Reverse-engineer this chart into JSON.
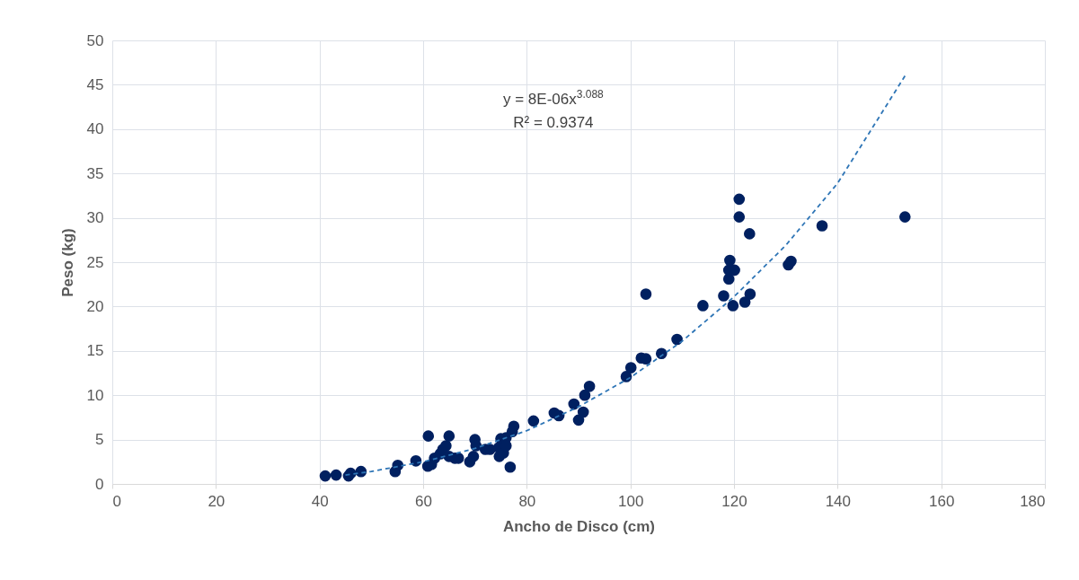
{
  "chart_data": {
    "type": "scatter",
    "xlabel": "Ancho de Disco (cm)",
    "ylabel": "Peso (kg)",
    "xlim": [
      0,
      180
    ],
    "xticks": [
      0,
      20,
      40,
      60,
      80,
      100,
      120,
      140,
      160,
      180
    ],
    "ylim": [
      0,
      50
    ],
    "yticks": [
      0,
      5,
      10,
      15,
      20,
      25,
      30,
      35,
      40,
      45,
      50
    ],
    "grid": true,
    "annotations": [
      "y = 8E-06x$^{3.088}$",
      "R² = 0.9374"
    ],
    "series": [
      {
        "color": "#002060",
        "marker": "circle",
        "x": [
          41.1,
          43.2,
          45.6,
          46,
          48,
          54.6,
          55.1,
          58.6,
          61,
          60.9,
          61.6,
          62.2,
          63.3,
          63.8,
          64.4,
          65,
          65,
          66.1,
          66.8,
          69,
          69.7,
          70,
          70.2,
          72,
          72.9,
          74.6,
          74.7,
          75,
          75.5,
          76,
          76,
          76.8,
          77.5,
          77.2,
          81.3,
          85.3,
          86.2,
          89.1,
          90,
          90.9,
          91.2,
          92.1,
          99.2,
          100.1,
          102.1,
          103,
          103,
          106,
          109,
          114,
          118,
          119.8,
          122.1,
          123.1,
          119,
          119,
          120.1,
          119.2,
          121,
          121,
          123,
          130.5,
          131,
          137,
          153
        ],
        "values": [
          0.9,
          1.0,
          0.9,
          1.2,
          1.4,
          1.4,
          2.1,
          2.6,
          5.4,
          2.0,
          2.2,
          2.9,
          3.4,
          3.9,
          4.3,
          5.4,
          3.1,
          2.9,
          2.9,
          2.5,
          3.1,
          5.0,
          4.3,
          3.9,
          3.9,
          4.1,
          3.1,
          5.1,
          3.5,
          5.2,
          4.3,
          1.9,
          6.5,
          5.9,
          7.1,
          8.0,
          7.7,
          9.0,
          7.2,
          8.1,
          10.0,
          11.0,
          12.1,
          13.1,
          14.2,
          14.1,
          21.4,
          14.7,
          16.3,
          20.1,
          21.2,
          20.1,
          20.5,
          21.4,
          23.1,
          24.1,
          24.1,
          25.2,
          30.1,
          32.1,
          28.2,
          24.7,
          25.1,
          29.1,
          30.1
        ]
      },
      {
        "type": "line",
        "color": "#2e75b6",
        "line_style": "dashed",
        "x": [
          45,
          50,
          60,
          70,
          80,
          90,
          100,
          110,
          120,
          130,
          140,
          153
        ],
        "values": [
          1.0,
          1.4,
          2.5,
          4.0,
          6.0,
          8.7,
          12.0,
          16.1,
          21.1,
          26.9,
          33.9,
          46.0
        ]
      }
    ]
  }
}
